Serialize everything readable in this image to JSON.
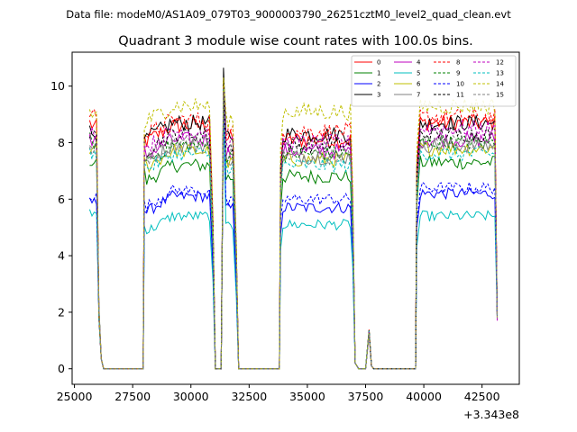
{
  "header": {
    "file_label": "Data file: modeM0/AS1A09_079T03_9000003790_26251cztM0_level2_quad_clean.evt"
  },
  "chart_data": {
    "type": "line",
    "title": "Quadrant 3 module wise count rates with 100.0s bins.",
    "xlabel": "",
    "ylabel": "",
    "x_offset_label": "+3.343e8",
    "xlim": [
      24900,
      44100
    ],
    "ylim": [
      -0.55,
      11.2
    ],
    "xticks": [
      25000,
      27500,
      30000,
      32500,
      35000,
      37500,
      40000,
      42500
    ],
    "yticks": [
      0,
      2,
      4,
      6,
      8,
      10
    ],
    "legend_placement": "top-right",
    "legend_columns": 4,
    "structure": {
      "edges": [
        [
          25650,
          26050
        ],
        [
          28000,
          30950
        ],
        [
          31400,
          31950
        ],
        [
          33850,
          36950
        ],
        [
          37550,
          37750
        ],
        [
          39700,
          43150
        ]
      ],
      "tail_values_end": [
        1.8,
        1.8,
        2.0,
        2.0,
        1.7,
        1.9,
        1.9,
        1.8,
        1.9,
        1.9,
        1.9,
        1.9,
        1.9,
        1.9,
        1.8,
        1.8
      ],
      "spike_time": 31400,
      "spike_values": [
        10.2,
        9.8,
        9.3,
        10.65,
        9.9,
        9.4,
        9.8,
        9.6,
        10.0,
        9.7,
        9.6,
        9.9,
        9.9,
        9.9,
        10.3,
        9.8
      ],
      "bump_time": 37650,
      "bump_value": 1.3
    },
    "series": [
      {
        "name": "0",
        "color": "#ff0000",
        "dashed": false,
        "levels": [
          8.6,
          8.3,
          8.1,
          8.7
        ]
      },
      {
        "name": "1",
        "color": "#008000",
        "dashed": false,
        "levels": [
          7.3,
          6.9,
          6.8,
          7.3
        ]
      },
      {
        "name": "2",
        "color": "#0000ff",
        "dashed": false,
        "levels": [
          5.9,
          5.8,
          5.7,
          6.2
        ]
      },
      {
        "name": "3",
        "color": "#000000",
        "dashed": false,
        "levels": [
          8.3,
          8.4,
          8.3,
          8.7
        ]
      },
      {
        "name": "4",
        "color": "#bf00bf",
        "dashed": false,
        "levels": [
          8.1,
          7.8,
          7.7,
          8.1
        ]
      },
      {
        "name": "5",
        "color": "#00bfbf",
        "dashed": false,
        "levels": [
          5.5,
          5.1,
          5.1,
          5.4
        ]
      },
      {
        "name": "6",
        "color": "#bfbf00",
        "dashed": false,
        "levels": [
          7.7,
          7.4,
          7.4,
          7.8
        ]
      },
      {
        "name": "7",
        "color": "#808080",
        "dashed": false,
        "levels": [
          7.9,
          7.6,
          7.5,
          7.9
        ]
      },
      {
        "name": "8",
        "color": "#ff0000",
        "dashed": true,
        "levels": [
          9.0,
          8.5,
          8.4,
          8.9
        ]
      },
      {
        "name": "9",
        "color": "#008000",
        "dashed": true,
        "levels": [
          8.0,
          7.6,
          7.6,
          8.0
        ]
      },
      {
        "name": "10",
        "color": "#0000ff",
        "dashed": true,
        "levels": [
          6.1,
          6.0,
          6.0,
          6.4
        ]
      },
      {
        "name": "11",
        "color": "#000000",
        "dashed": true,
        "levels": [
          8.2,
          8.0,
          7.9,
          8.3
        ]
      },
      {
        "name": "12",
        "color": "#bf00bf",
        "dashed": true,
        "levels": [
          8.4,
          8.1,
          8.0,
          8.5
        ]
      },
      {
        "name": "13",
        "color": "#00bfbf",
        "dashed": true,
        "levels": [
          7.6,
          7.3,
          7.2,
          7.6
        ]
      },
      {
        "name": "14",
        "color": "#bfbf00",
        "dashed": true,
        "levels": [
          9.0,
          9.0,
          9.1,
          9.3
        ]
      },
      {
        "name": "15",
        "color": "#808080",
        "dashed": true,
        "levels": [
          7.7,
          7.7,
          7.5,
          8.0
        ]
      }
    ]
  }
}
